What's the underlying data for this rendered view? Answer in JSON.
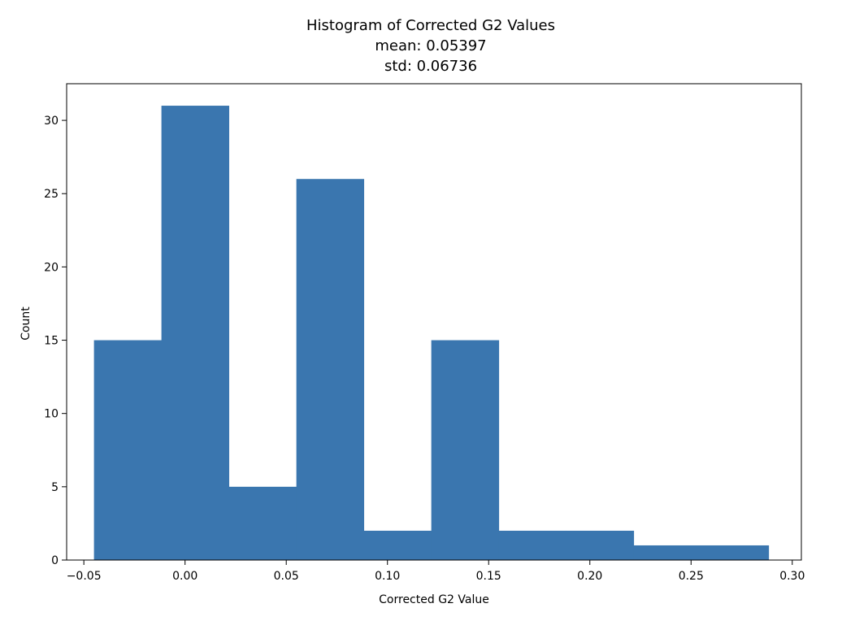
{
  "chart_data": {
    "type": "bar",
    "title": [
      "Histogram of Corrected G2 Values",
      "mean: 0.05397",
      "std: 0.06736"
    ],
    "xlabel": "Corrected G2 Value",
    "ylabel": "Count",
    "xlim": [
      -0.0585,
      0.3045
    ],
    "ylim": [
      0,
      32.5
    ],
    "bin_edges": [
      -0.045,
      -0.01167,
      0.02166,
      0.055,
      0.08833,
      0.12166,
      0.155,
      0.18833,
      0.22166,
      0.255,
      0.28833
    ],
    "values": [
      15,
      31,
      5,
      26,
      2,
      15,
      2,
      2,
      1,
      1
    ],
    "xticks": [
      -0.05,
      0.0,
      0.05,
      0.1,
      0.15,
      0.2,
      0.25,
      0.3
    ],
    "xtick_labels": [
      "−0.05",
      "0.00",
      "0.05",
      "0.10",
      "0.15",
      "0.20",
      "0.25",
      "0.30"
    ],
    "yticks": [
      0,
      5,
      10,
      15,
      20,
      25,
      30
    ],
    "ytick_labels": [
      "0",
      "5",
      "10",
      "15",
      "20",
      "25",
      "30"
    ],
    "grid": false,
    "bar_color": "#3a76af"
  }
}
